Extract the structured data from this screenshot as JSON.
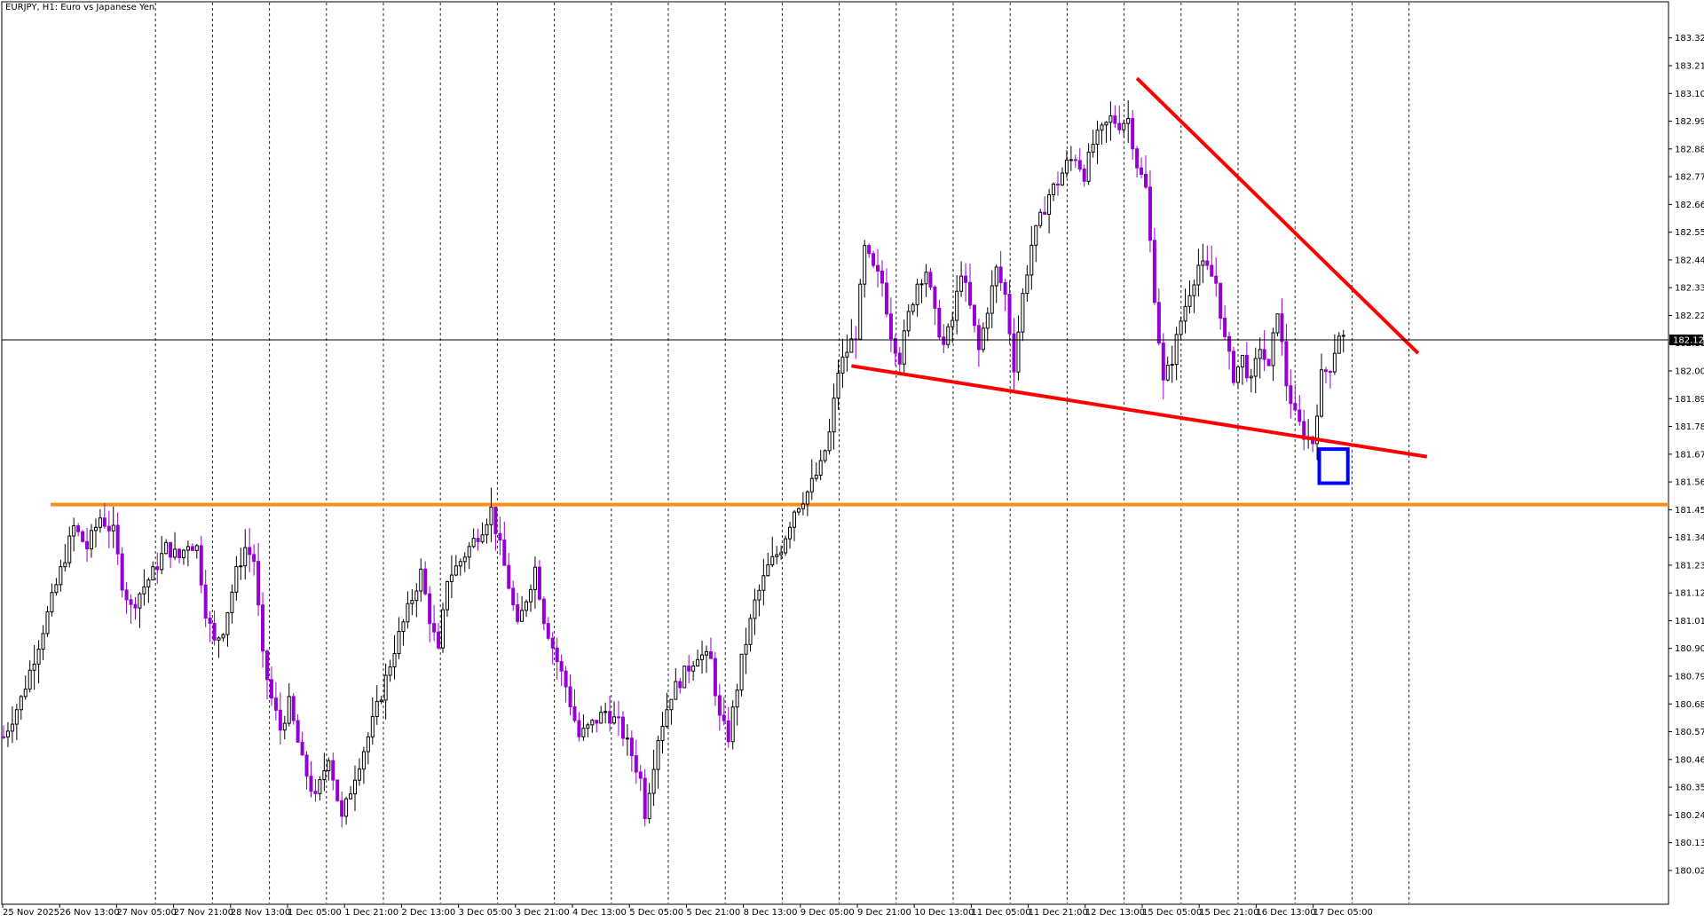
{
  "header": {
    "title": "EURJPY, H1:  Euro vs Japanese Yen"
  },
  "colors": {
    "background": "#ffffff",
    "bull_candle": "#000000",
    "bear_candle": "#9400d3",
    "grid": "#000000",
    "support_line": "#ff8c1a",
    "trendline": "#ff0000",
    "highlight_box": "#0000ff",
    "price_line": "#000000",
    "price_tag_bg": "#000000",
    "price_tag_text": "#ffffff"
  },
  "chart_data": {
    "type": "candlestick",
    "symbol": "EURJPY",
    "timeframe": "H1",
    "ylim": [
      179.9,
      183.4
    ],
    "y_ticks": [
      "183.320",
      "183.210",
      "183.100",
      "182.990",
      "182.880",
      "182.770",
      "182.660",
      "182.550",
      "182.440",
      "182.330",
      "182.220",
      "182.110",
      "182.000",
      "181.890",
      "181.780",
      "181.670",
      "181.560",
      "181.450",
      "181.340",
      "181.230",
      "181.120",
      "181.010",
      "180.900",
      "180.790",
      "180.680",
      "180.570",
      "180.460",
      "180.350",
      "180.240",
      "180.130",
      "180.020"
    ],
    "x_ticks": [
      "25 Nov 2025",
      "26 Nov 13:00",
      "27 Nov 05:00",
      "27 Nov 21:00",
      "28 Nov 13:00",
      "1 Dec 05:00",
      "1 Dec 21:00",
      "2 Dec 13:00",
      "3 Dec 05:00",
      "3 Dec 21:00",
      "4 Dec 13:00",
      "5 Dec 05:00",
      "5 Dec 21:00",
      "8 Dec 13:00",
      "9 Dec 05:00",
      "9 Dec 21:00",
      "10 Dec 13:00",
      "11 Dec 05:00",
      "11 Dec 21:00",
      "12 Dec 13:00",
      "15 Dec 05:00",
      "15 Dec 21:00",
      "16 Dec 13:00",
      "17 Dec 05:00"
    ],
    "current_price": "182.123",
    "current_price_value": 182.123,
    "close_path": [
      [
        0,
        180.55
      ],
      [
        4,
        180.7
      ],
      [
        8,
        180.92
      ],
      [
        12,
        181.15
      ],
      [
        16,
        181.38
      ],
      [
        19,
        181.3
      ],
      [
        22,
        181.42
      ],
      [
        25,
        181.36
      ],
      [
        27,
        181.16
      ],
      [
        29,
        181.06
      ],
      [
        31,
        181.12
      ],
      [
        34,
        181.2
      ],
      [
        37,
        181.3
      ],
      [
        40,
        181.26
      ],
      [
        42,
        181.32
      ],
      [
        44,
        181.3
      ],
      [
        46,
        181.05
      ],
      [
        48,
        180.92
      ],
      [
        50,
        180.98
      ],
      [
        53,
        181.2
      ],
      [
        55,
        181.3
      ],
      [
        57,
        181.25
      ],
      [
        59,
        180.86
      ],
      [
        61,
        180.7
      ],
      [
        63,
        180.58
      ],
      [
        65,
        180.68
      ],
      [
        68,
        180.45
      ],
      [
        71,
        180.3
      ],
      [
        74,
        180.48
      ],
      [
        77,
        180.22
      ],
      [
        80,
        180.4
      ],
      [
        83,
        180.55
      ],
      [
        86,
        180.72
      ],
      [
        89,
        180.9
      ],
      [
        92,
        181.05
      ],
      [
        95,
        181.2
      ],
      [
        97,
        181.02
      ],
      [
        99,
        180.88
      ],
      [
        101,
        181.18
      ],
      [
        103,
        181.22
      ],
      [
        106,
        181.3
      ],
      [
        109,
        181.38
      ],
      [
        111,
        181.45
      ],
      [
        113,
        181.3
      ],
      [
        115,
        181.15
      ],
      [
        117,
        180.98
      ],
      [
        119,
        181.1
      ],
      [
        121,
        181.22
      ],
      [
        123,
        181.02
      ],
      [
        126,
        180.85
      ],
      [
        128,
        180.75
      ],
      [
        131,
        180.55
      ],
      [
        134,
        180.6
      ],
      [
        137,
        180.65
      ],
      [
        140,
        180.6
      ],
      [
        143,
        180.48
      ],
      [
        145,
        180.38
      ],
      [
        146,
        180.25
      ],
      [
        149,
        180.55
      ],
      [
        152,
        180.72
      ],
      [
        155,
        180.8
      ],
      [
        158,
        180.88
      ],
      [
        161,
        180.85
      ],
      [
        163,
        180.62
      ],
      [
        165,
        180.55
      ],
      [
        168,
        180.85
      ],
      [
        171,
        181.08
      ],
      [
        174,
        181.22
      ],
      [
        177,
        181.3
      ],
      [
        180,
        181.45
      ],
      [
        183,
        181.52
      ],
      [
        186,
        181.62
      ],
      [
        188,
        181.75
      ],
      [
        190,
        182.0
      ],
      [
        192,
        182.08
      ],
      [
        194,
        182.15
      ],
      [
        196,
        182.48
      ],
      [
        198,
        182.4
      ],
      [
        200,
        182.35
      ],
      [
        202,
        182.15
      ],
      [
        204,
        182.05
      ],
      [
        206,
        182.22
      ],
      [
        208,
        182.35
      ],
      [
        210,
        182.4
      ],
      [
        212,
        182.22
      ],
      [
        214,
        182.1
      ],
      [
        216,
        182.2
      ],
      [
        218,
        182.4
      ],
      [
        220,
        182.25
      ],
      [
        222,
        182.08
      ],
      [
        224,
        182.25
      ],
      [
        226,
        182.4
      ],
      [
        228,
        182.3
      ],
      [
        230,
        182.02
      ],
      [
        232,
        182.3
      ],
      [
        234,
        182.5
      ],
      [
        236,
        182.6
      ],
      [
        238,
        182.7
      ],
      [
        240,
        182.75
      ],
      [
        242,
        182.82
      ],
      [
        244,
        182.85
      ],
      [
        246,
        182.78
      ],
      [
        248,
        182.9
      ],
      [
        250,
        182.95
      ],
      [
        252,
        183.0
      ],
      [
        254,
        182.98
      ],
      [
        256,
        183.0
      ],
      [
        258,
        182.82
      ],
      [
        260,
        182.72
      ],
      [
        262,
        182.3
      ],
      [
        264,
        181.95
      ],
      [
        266,
        182.05
      ],
      [
        268,
        182.2
      ],
      [
        270,
        182.32
      ],
      [
        272,
        182.42
      ],
      [
        274,
        182.4
      ],
      [
        276,
        182.35
      ],
      [
        278,
        182.12
      ],
      [
        280,
        181.98
      ],
      [
        282,
        182.05
      ],
      [
        284,
        181.95
      ],
      [
        286,
        182.1
      ],
      [
        288,
        182.0
      ],
      [
        290,
        182.25
      ],
      [
        292,
        181.95
      ],
      [
        294,
        181.82
      ],
      [
        296,
        181.75
      ],
      [
        298,
        181.72
      ],
      [
        300,
        181.98
      ],
      [
        302,
        182.02
      ],
      [
        304,
        182.15
      ],
      [
        305,
        182.13
      ]
    ]
  },
  "annotations": {
    "support_level": 181.47,
    "upper_trendline": {
      "start": [
        258,
        183.16
      ],
      "end": [
        322,
        182.07
      ]
    },
    "lower_trendline": {
      "start": [
        193,
        182.02
      ],
      "end": [
        324,
        181.66
      ]
    },
    "highlight_box": {
      "x_start": 299.5,
      "x_end": 306,
      "price_low": 181.555,
      "price_high": 181.69
    }
  }
}
